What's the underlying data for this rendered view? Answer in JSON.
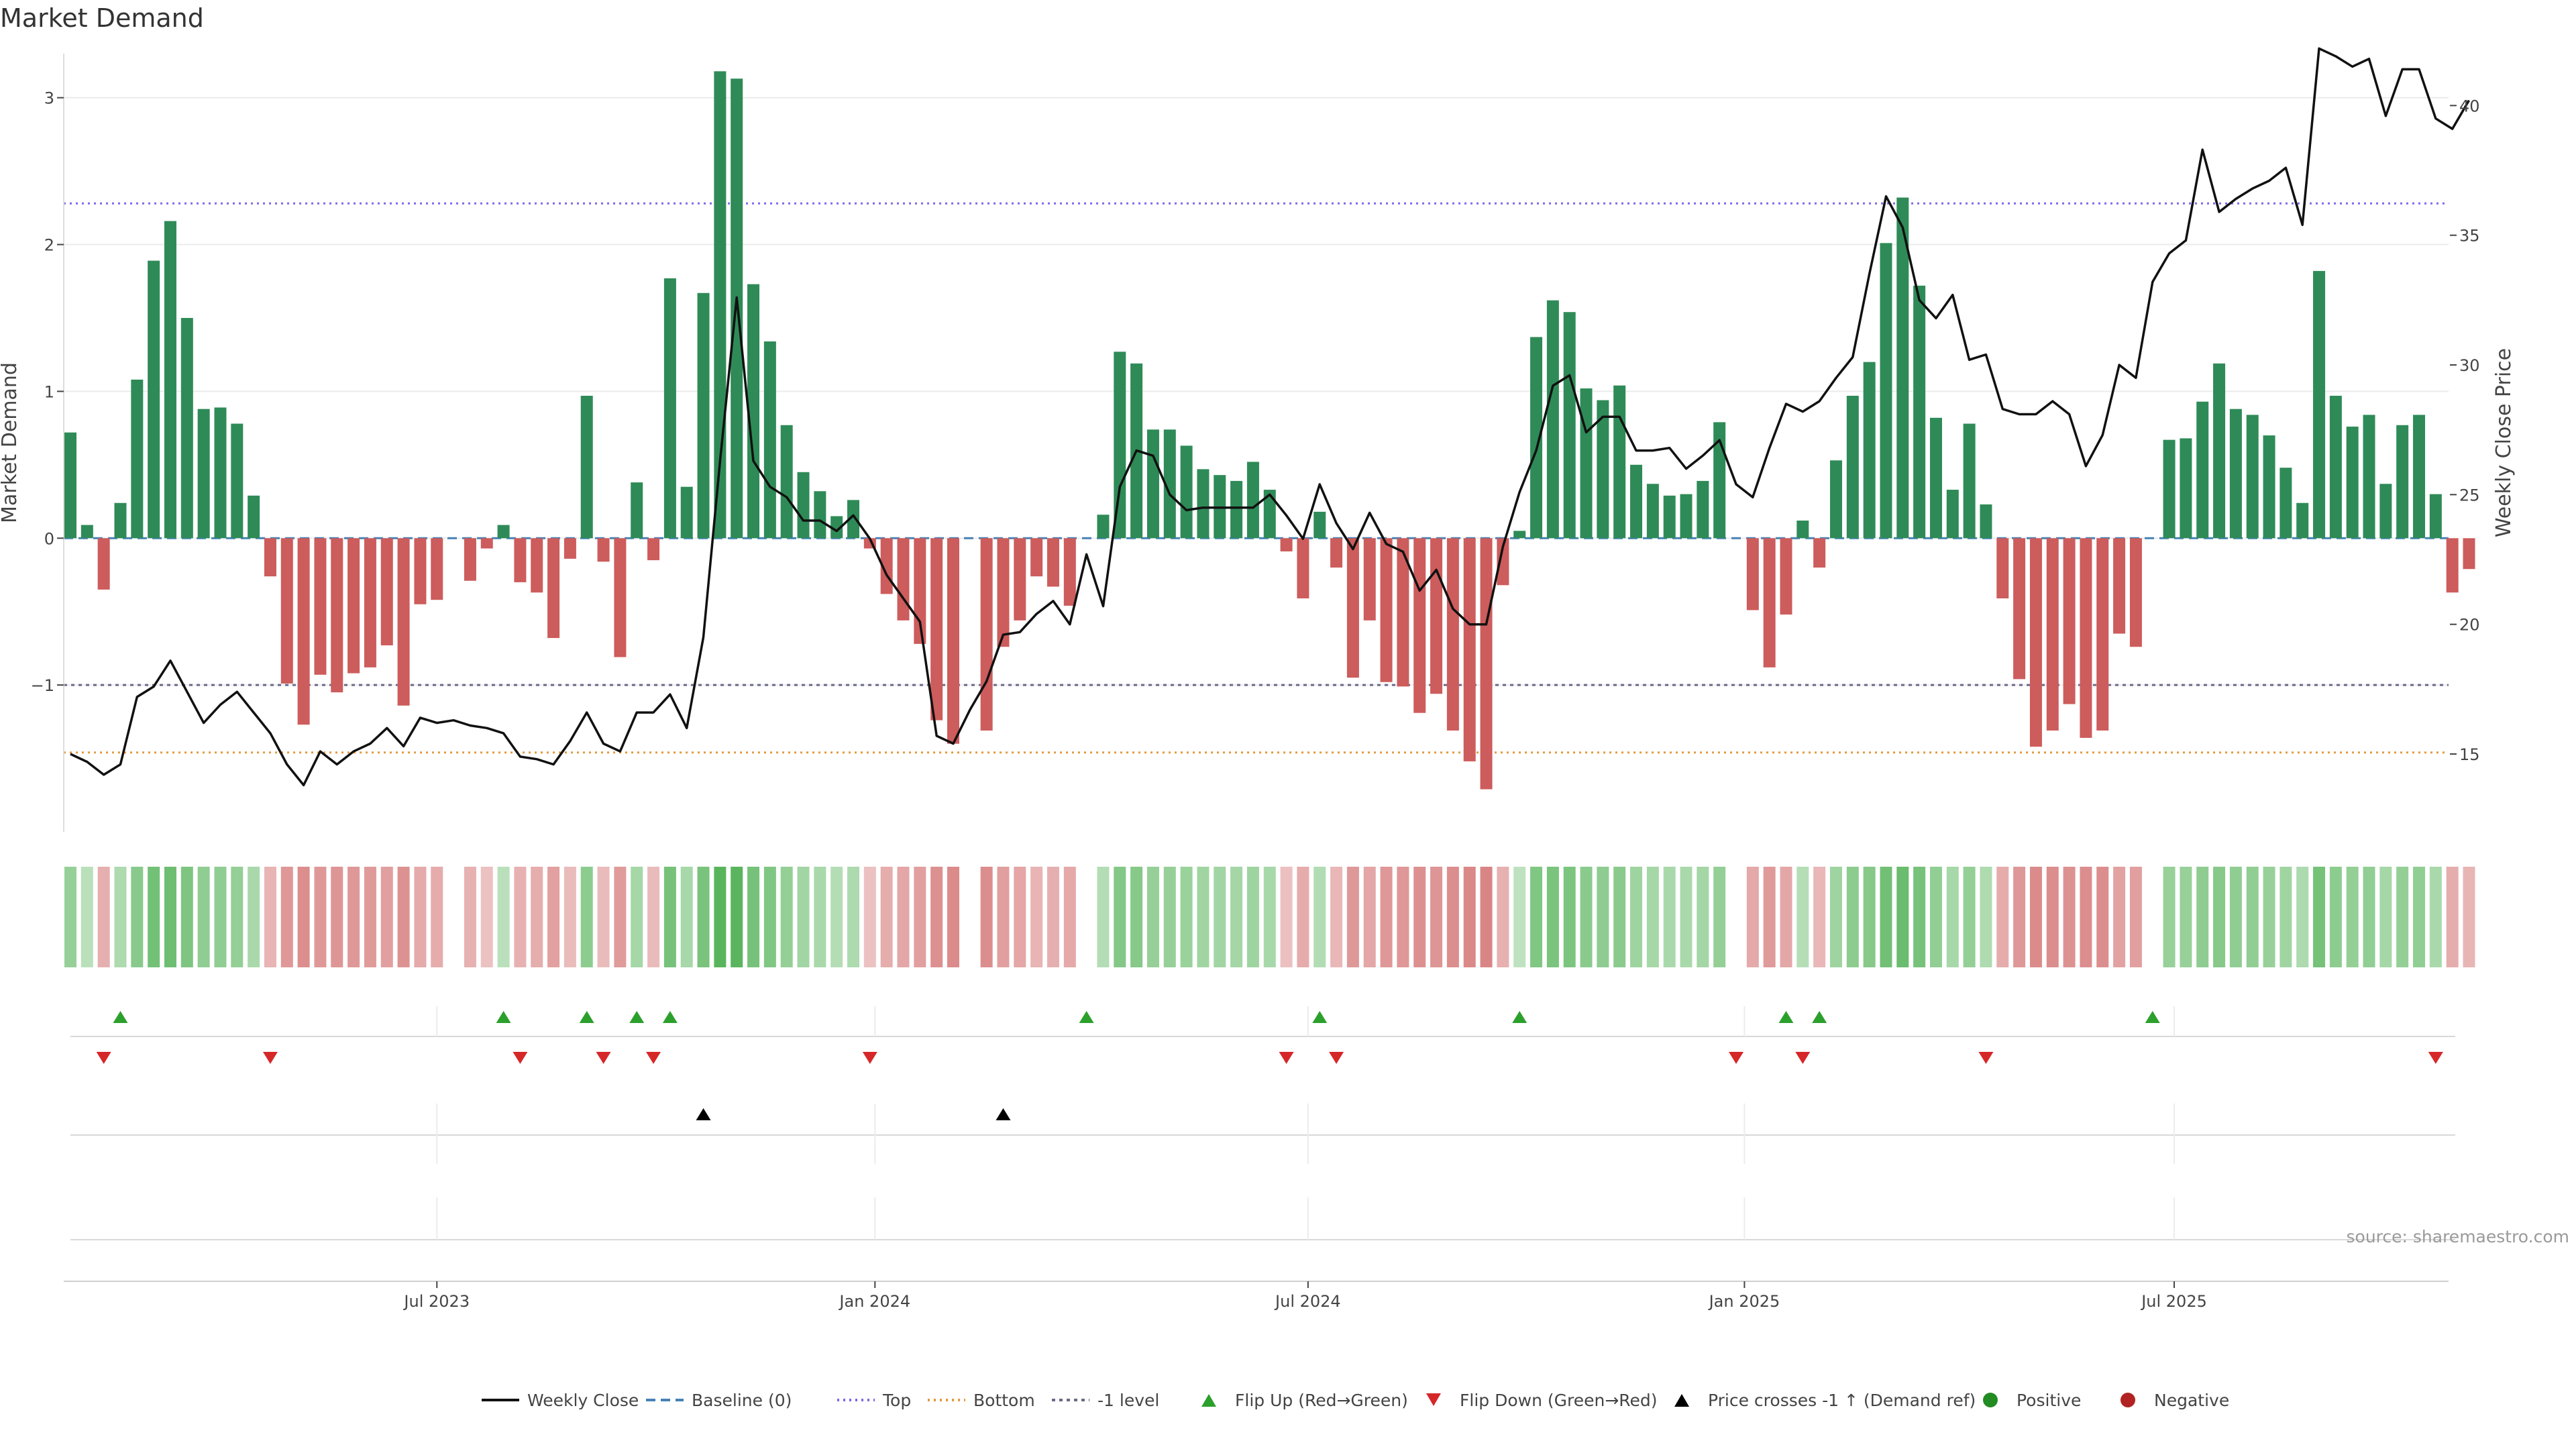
{
  "chart_data": {
    "type": "bar",
    "title": "Market Demand",
    "ylabel": "Market Demand",
    "y2label": "Weekly Close Price",
    "source": "source: sharemaestro.com",
    "start_date": "2023-01-13",
    "ylim": [
      -2,
      3.3
    ],
    "y2lim": [
      12,
      42
    ],
    "yticks": [
      {
        "v": 3,
        "label": "3"
      },
      {
        "v": 2,
        "label": "2"
      },
      {
        "v": 1,
        "label": "1"
      },
      {
        "v": 0,
        "label": "0"
      },
      {
        "v": -1,
        "label": "−1"
      }
    ],
    "y2ticks": [
      {
        "v": 40,
        "label": "40"
      },
      {
        "v": 35,
        "label": "35"
      },
      {
        "v": 30,
        "label": "30"
      },
      {
        "v": 25,
        "label": "25"
      },
      {
        "v": 20,
        "label": "20"
      },
      {
        "v": 15,
        "label": "15"
      }
    ],
    "xticks": [
      {
        "label": "Jul 2023",
        "week": 22
      },
      {
        "label": "Jan 2024",
        "week": 48.3
      },
      {
        "label": "Jul 2024",
        "week": 74.3
      },
      {
        "label": "Jan 2025",
        "week": 100.5
      },
      {
        "label": "Jul 2025",
        "week": 126.3
      }
    ],
    "reference_lines": {
      "baseline": 0,
      "top": 2.28,
      "bottom": -1.46,
      "minus_one": -1
    },
    "colors": {
      "positive": "#2e8b57",
      "negative": "#cd5c5c",
      "price": "#111111",
      "baseline": "#4682b4",
      "top": "#7b68ee",
      "bottom": "#e69a3c",
      "minus_one": "#6a6a8a",
      "flip_up": "#2ca02c",
      "flip_down": "#d62728",
      "price_cross": "#000000",
      "positive_dot": "#228b22",
      "negative_dot": "#b22222"
    },
    "demand": [
      0.72,
      0.09,
      -0.35,
      0.24,
      1.08,
      1.89,
      2.16,
      1.5,
      0.88,
      0.89,
      0.78,
      0.29,
      -0.26,
      -0.99,
      -1.27,
      -0.93,
      -1.05,
      -0.92,
      -0.88,
      -0.73,
      -1.14,
      -0.45,
      -0.42,
      0.0,
      -0.29,
      -0.07,
      0.09,
      -0.3,
      -0.37,
      -0.68,
      -0.14,
      0.97,
      -0.16,
      -0.81,
      0.38,
      -0.15,
      1.77,
      0.35,
      1.67,
      3.18,
      3.13,
      1.73,
      1.34,
      0.77,
      0.45,
      0.32,
      0.15,
      0.26,
      -0.07,
      -0.38,
      -0.56,
      -0.72,
      -1.24,
      -1.4,
      0.0,
      -1.31,
      -0.74,
      -0.56,
      -0.26,
      -0.33,
      -0.46,
      0.0,
      0.16,
      1.27,
      1.19,
      0.74,
      0.74,
      0.63,
      0.47,
      0.43,
      0.39,
      0.52,
      0.33,
      -0.09,
      -0.41,
      0.18,
      -0.2,
      -0.95,
      -0.56,
      -0.98,
      -1.01,
      -1.19,
      -1.06,
      -1.31,
      -1.52,
      -1.71,
      -0.32,
      0.05,
      1.37,
      1.62,
      1.54,
      1.02,
      0.94,
      1.04,
      0.5,
      0.37,
      0.29,
      0.3,
      0.39,
      0.79,
      0.0,
      -0.49,
      -0.88,
      -0.52,
      0.12,
      -0.2,
      0.53,
      0.97,
      1.2,
      2.01,
      2.32,
      1.72,
      0.82,
      0.33,
      0.78,
      0.23,
      -0.41,
      -0.96,
      -1.42,
      -1.31,
      -1.13,
      -1.36,
      -1.31,
      -0.65,
      -0.74,
      0.0,
      0.67,
      0.68,
      0.93,
      1.19,
      0.88,
      0.84,
      0.7,
      0.48,
      0.24,
      1.82,
      0.97,
      0.76,
      0.84,
      0.37,
      0.77,
      0.84,
      0.3,
      -0.37,
      -0.21
    ],
    "price": [
      15.0,
      14.7,
      14.2,
      14.6,
      17.2,
      17.6,
      18.6,
      17.4,
      16.2,
      16.9,
      17.4,
      16.6,
      15.8,
      14.6,
      13.8,
      15.1,
      14.6,
      15.1,
      15.4,
      16.0,
      15.3,
      16.4,
      16.2,
      16.3,
      16.1,
      16.0,
      15.8,
      14.9,
      14.8,
      14.6,
      15.5,
      16.6,
      15.4,
      15.1,
      16.6,
      16.6,
      17.3,
      16.0,
      19.5,
      26.3,
      32.6,
      26.3,
      25.3,
      24.9,
      24.0,
      24.0,
      23.6,
      24.2,
      23.3,
      21.9,
      21.0,
      20.1,
      15.7,
      15.4,
      16.7,
      17.8,
      19.6,
      19.7,
      20.4,
      20.9,
      20.0,
      22.7,
      20.7,
      25.3,
      26.7,
      26.5,
      25.0,
      24.4,
      24.5,
      24.5,
      24.5,
      24.5,
      25.0,
      24.2,
      23.3,
      25.4,
      23.9,
      22.9,
      24.3,
      23.1,
      22.8,
      21.3,
      22.1,
      20.6,
      20.0,
      20.0,
      23.0,
      25.1,
      26.7,
      29.2,
      29.6,
      27.4,
      28.0,
      28.0,
      26.7,
      26.7,
      26.8,
      26.0,
      26.5,
      27.1,
      25.4,
      24.9,
      26.8,
      28.5,
      28.2,
      28.6,
      29.5,
      30.3,
      33.5,
      36.5,
      35.3,
      32.5,
      31.8,
      32.7,
      30.2,
      30.4,
      28.3,
      28.1,
      28.1,
      28.6,
      28.1,
      26.1,
      27.3,
      30.0,
      29.5,
      33.2,
      34.3,
      34.8,
      38.3,
      35.9,
      36.4,
      36.8,
      37.1,
      37.6,
      35.4,
      42.2,
      41.9,
      41.5,
      41.8,
      39.6,
      41.4,
      41.4,
      39.5,
      39.1,
      40.2
    ],
    "flip_up_weeks": [
      3,
      26,
      31,
      34,
      36,
      61,
      75,
      87,
      103,
      105,
      125
    ],
    "flip_down_weeks": [
      2,
      12,
      27,
      32,
      35,
      48,
      73,
      76,
      100,
      104,
      115,
      142
    ],
    "price_cross_weeks": [
      38,
      56
    ],
    "legend": [
      "Weekly Close",
      "Baseline (0)",
      "Top",
      "Bottom",
      "-1 level",
      "Flip Up (Red→Green)",
      "Flip Down (Green→Red)",
      "Price crosses -1 ↑ (Demand ref)",
      "Positive",
      "Negative"
    ],
    "grid": true,
    "legend_position": "bottom"
  }
}
